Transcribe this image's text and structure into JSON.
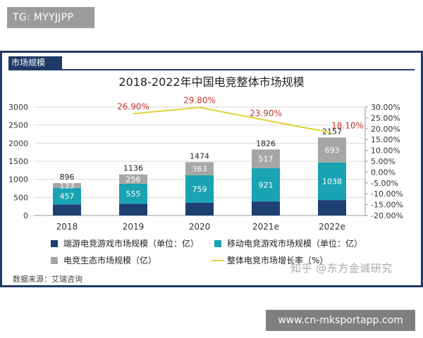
{
  "watermark_top": "TG: MYYJJPP",
  "watermark_bottom": "www.cn-mksportapp.com",
  "watermark_overlay": "知乎 @东方金诚研究",
  "section_tab": "市场规模",
  "source_label": "数据来源：艾瑞咨询",
  "colors": {
    "pc": "#1e3f73",
    "mobile": "#1aa3b2",
    "ecosystem": "#a6a6a6",
    "growth": "#e3d23a",
    "growth_label": "#c0392b",
    "frame": "#1f3a66"
  },
  "chart_data": {
    "type": "bar",
    "stacked": true,
    "title": "2018-2022年中国电竞整体市场规模",
    "categories": [
      "2018",
      "2019",
      "2020",
      "2021e",
      "2022e"
    ],
    "series": [
      {
        "name": "端游电竞游戏市场规模（单位：亿）",
        "values": [
          306,
          325,
          352,
          388,
          426
        ],
        "labels_visible": false
      },
      {
        "name": "移动电竞游戏市场规模（单位：亿）",
        "values": [
          457,
          555,
          759,
          921,
          1038
        ]
      },
      {
        "name": "电竞生态市场规模（亿）",
        "values": [
          133,
          256,
          363,
          517,
          693
        ]
      }
    ],
    "totals": [
      "896",
      "1136",
      "1474",
      "1826",
      "2157"
    ],
    "line_series": {
      "name": "整体电竞市场增长率（%）",
      "x_categories": [
        "2019",
        "2020",
        "2021e",
        "2022e"
      ],
      "values": [
        26.9,
        29.8,
        23.9,
        18.1
      ],
      "labels": [
        "26.90%",
        "29.80%",
        "23.90%",
        "18.10%"
      ]
    },
    "y_left": {
      "min": 0,
      "max": 3000,
      "ticks": [
        "0",
        "500",
        "1000",
        "1500",
        "2000",
        "2500",
        "3000"
      ]
    },
    "y_right": {
      "min": -20,
      "max": 30,
      "ticks": [
        "-20.00%",
        "-15.00%",
        "-10.00%",
        "-5.00%",
        "0.00%",
        "5.00%",
        "10.00%",
        "15.00%",
        "20.00%",
        "25.00%",
        "30.00%"
      ]
    },
    "legend": [
      "端游电竞游戏市场规模（单位：亿）",
      "移动电竞游戏市场规模（单位：亿）",
      "电竞生态市场规模（亿）",
      "整体电竞市场增长率（%）"
    ]
  }
}
